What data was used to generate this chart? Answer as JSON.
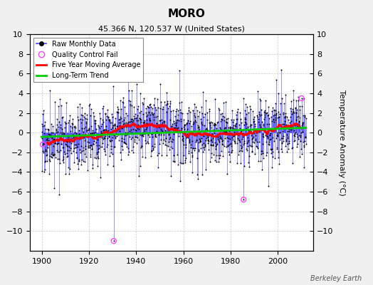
{
  "title": "MORO",
  "subtitle": "45.366 N, 120.537 W (United States)",
  "ylabel_right": "Temperature Anomaly (°C)",
  "watermark": "Berkeley Earth",
  "xlim": [
    1895,
    2015
  ],
  "ylim": [
    -12,
    10
  ],
  "yticks": [
    -10,
    -8,
    -6,
    -4,
    -2,
    0,
    2,
    4,
    6,
    8,
    10
  ],
  "xticks": [
    1900,
    1920,
    1940,
    1960,
    1980,
    2000
  ],
  "raw_color": "#4444FF",
  "dot_color": "#000000",
  "moving_avg_color": "#FF0000",
  "trend_color": "#00CC00",
  "qc_color": "#FF44FF",
  "plot_bg": "#FFFFFF",
  "fig_bg": "#F0F0F0",
  "legend_items": [
    "Raw Monthly Data",
    "Quality Control Fail",
    "Five Year Moving Average",
    "Long-Term Trend"
  ],
  "seed": 17,
  "start_year": 1900,
  "end_year": 2011
}
